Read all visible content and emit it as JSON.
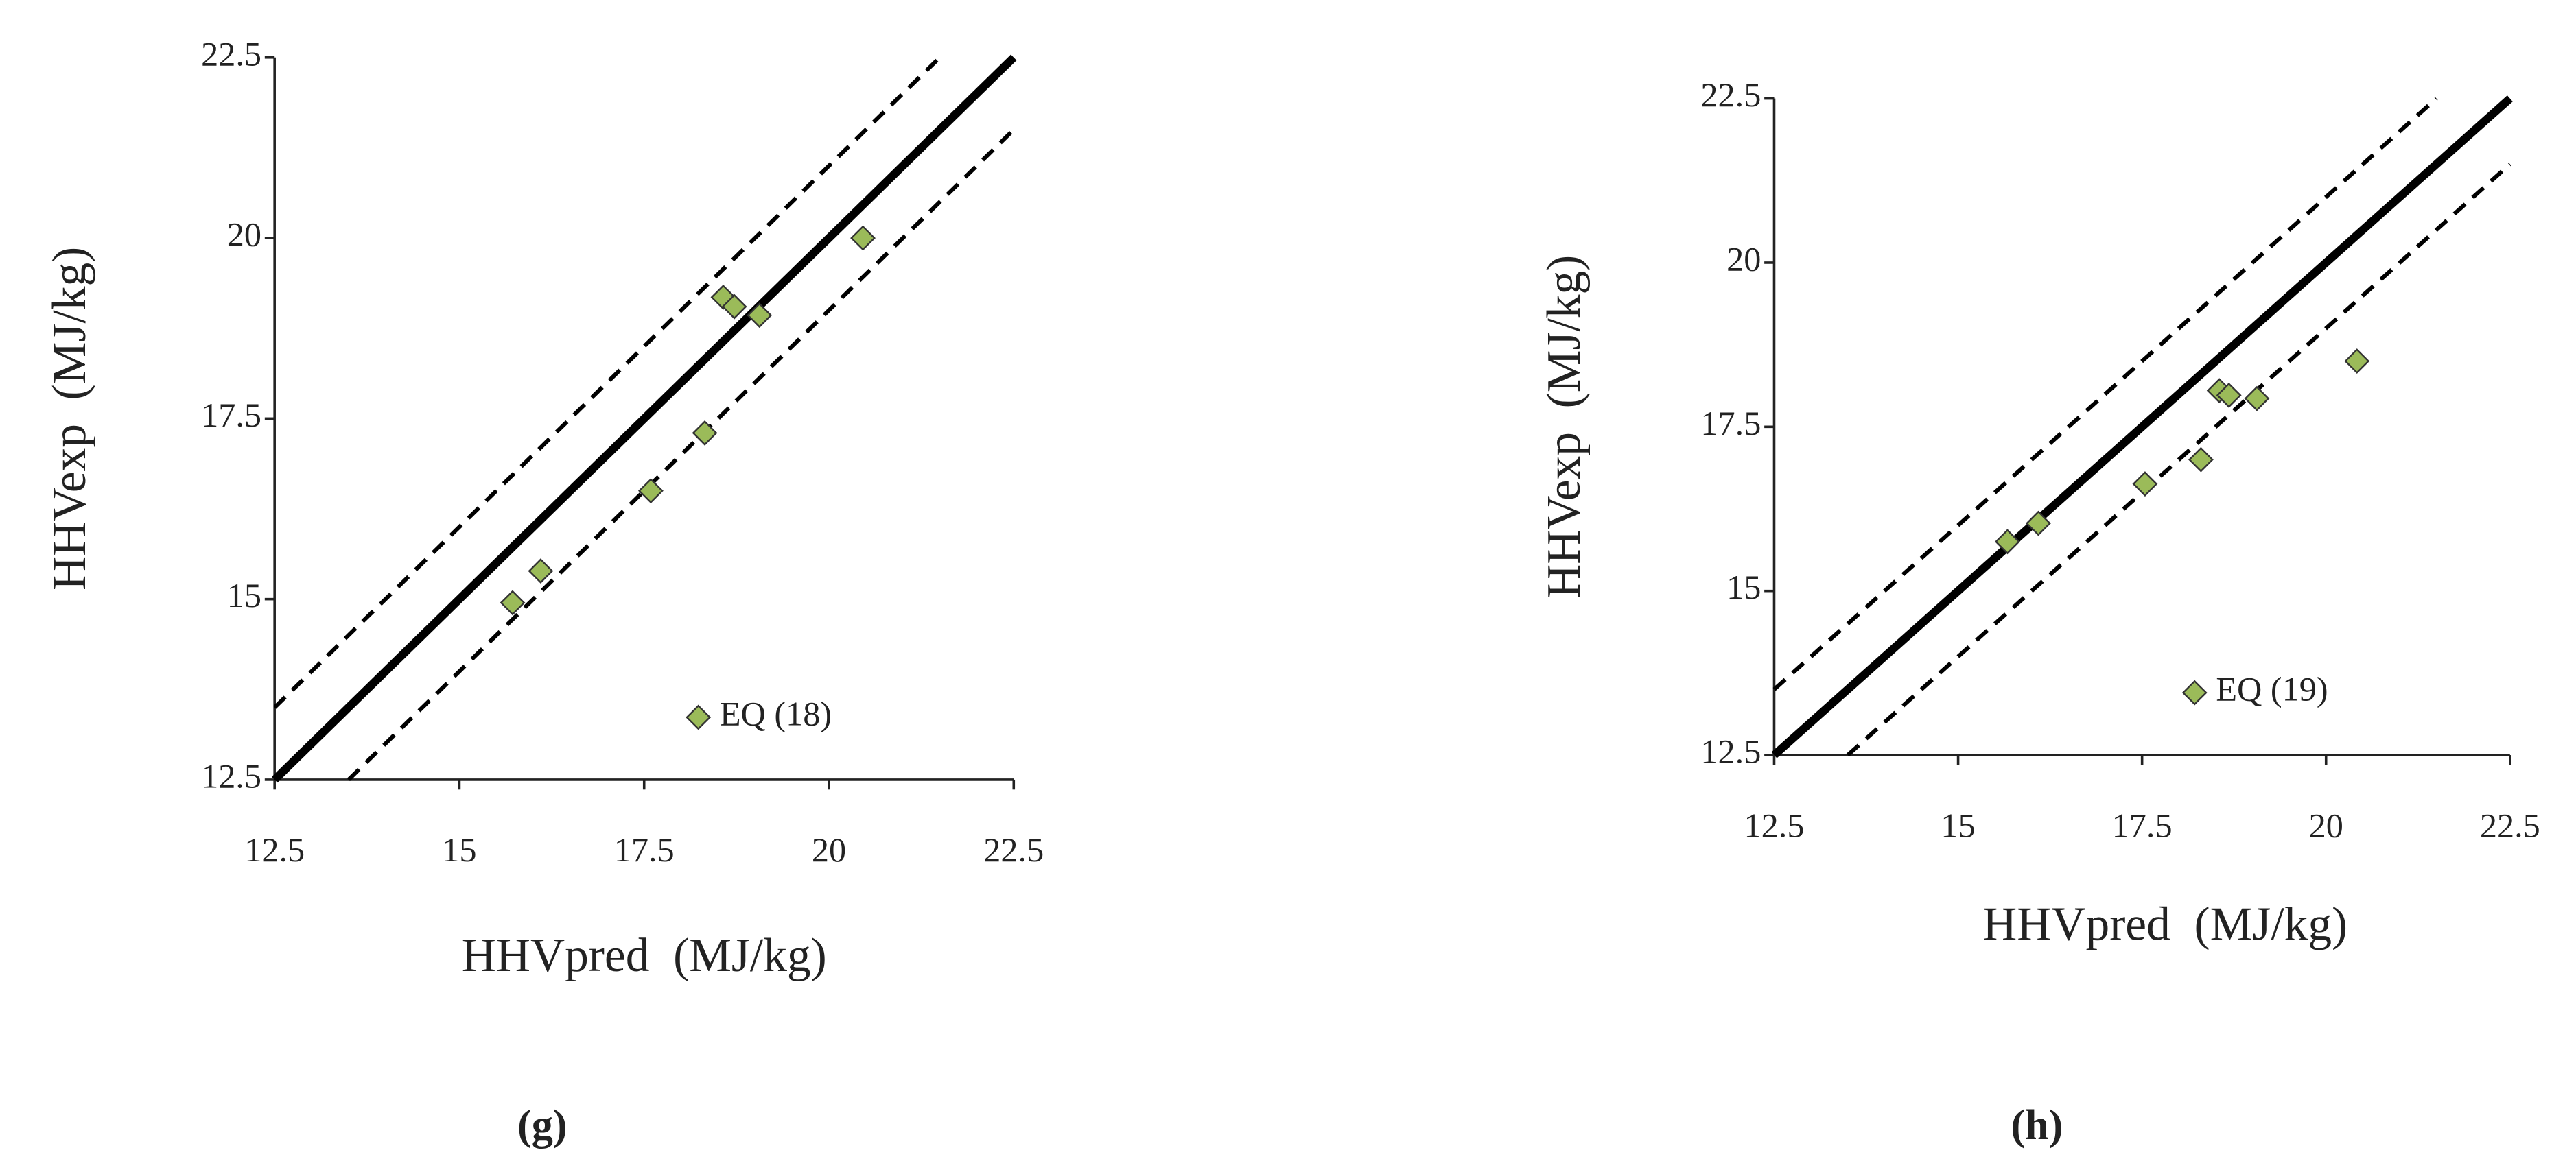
{
  "chart_data": [
    {
      "type": "scatter",
      "caption": "(g)",
      "x_label": "HHVpred  (MJ/kg)",
      "y_label": "HHVexp  (MJ/kg)",
      "xlim": [
        12.5,
        22.5
      ],
      "ylim": [
        12.5,
        22.5
      ],
      "xticks": [
        12.5,
        15,
        17.5,
        20,
        22.5
      ],
      "yticks": [
        12.5,
        15,
        17.5,
        20,
        22.5
      ],
      "legend": "lower right",
      "reference_lines": [
        {
          "x": [
            12.5,
            22.5
          ],
          "y": [
            12.5,
            22.5
          ],
          "dashed": false
        },
        {
          "x": [
            12.5,
            21.5
          ],
          "y": [
            13.5,
            22.5
          ],
          "dashed": true
        },
        {
          "x": [
            13.5,
            22.5
          ],
          "y": [
            12.5,
            21.5
          ],
          "dashed": true
        }
      ],
      "series": [
        {
          "name": "EQ (18)",
          "color": "#9bbb59",
          "x": [
            15.72,
            16.1,
            17.59,
            18.32,
            18.57,
            18.72,
            19.06,
            20.46
          ],
          "values": [
            14.95,
            15.39,
            16.5,
            17.3,
            19.18,
            19.05,
            18.93,
            20.0
          ]
        }
      ]
    },
    {
      "type": "scatter",
      "caption": "(h)",
      "x_label": "HHVpred  (MJ/kg)",
      "y_label": "HHVexp  (MJ/kg)",
      "xlim": [
        12.5,
        22.5
      ],
      "ylim": [
        12.5,
        22.5
      ],
      "xticks": [
        12.5,
        15,
        17.5,
        20,
        22.5
      ],
      "yticks": [
        12.5,
        15,
        17.5,
        20,
        22.5
      ],
      "legend": "lower right",
      "reference_lines": [
        {
          "x": [
            12.5,
            22.5
          ],
          "y": [
            12.5,
            22.5
          ],
          "dashed": false
        },
        {
          "x": [
            12.5,
            21.5
          ],
          "y": [
            13.5,
            22.5
          ],
          "dashed": true
        },
        {
          "x": [
            13.5,
            22.5
          ],
          "y": [
            12.5,
            21.5
          ],
          "dashed": true
        }
      ],
      "series": [
        {
          "name": "EQ (19)",
          "color": "#9bbb59",
          "x": [
            15.67,
            16.09,
            17.54,
            18.3,
            18.55,
            18.68,
            19.06,
            20.42
          ],
          "values": [
            15.75,
            16.03,
            16.63,
            17.0,
            18.05,
            17.98,
            17.93,
            18.5
          ]
        }
      ]
    }
  ]
}
